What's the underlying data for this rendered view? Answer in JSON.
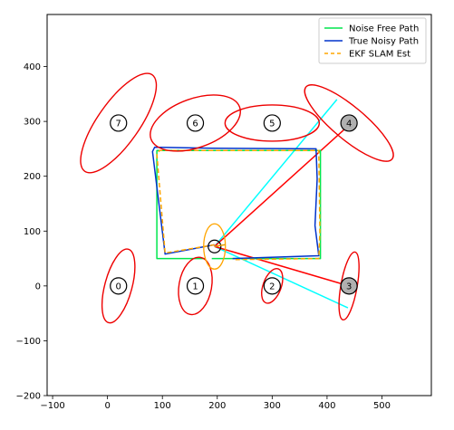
{
  "chart_data": {
    "type": "line",
    "title": "",
    "xlabel": "",
    "ylabel": "",
    "xlim": [
      -110,
      590
    ],
    "ylim": [
      -200,
      495
    ],
    "xticks": [
      -100,
      0,
      100,
      200,
      300,
      400,
      500
    ],
    "yticks": [
      -200,
      -100,
      0,
      100,
      200,
      300,
      400
    ],
    "grid": false,
    "legend_position": "top-right",
    "legend": [
      {
        "label": "Noise Free Path",
        "color": "#00e64d",
        "style": "solid"
      },
      {
        "label": "True Noisy Path",
        "color": "#0033cc",
        "style": "solid"
      },
      {
        "label": "EKF SLAM Est",
        "color": "#ffa500",
        "style": "dashed"
      }
    ],
    "series": [
      {
        "name": "Noise Free Path",
        "color": "#00e64d",
        "dash": false,
        "x": [
          178,
          90,
          90,
          388,
          388,
          190
        ],
        "y": [
          50,
          50,
          247,
          247,
          50,
          50
        ]
      },
      {
        "name": "True Noisy Path",
        "color": "#0033cc",
        "dash": false,
        "x": [
          195,
          105,
          82,
          86,
          190,
          380,
          382,
          378,
          385,
          228
        ],
        "y": [
          75,
          58,
          245,
          253,
          251,
          250,
          195,
          110,
          55,
          50
        ]
      },
      {
        "name": "EKF SLAM Est",
        "color": "#ffa500",
        "dash": true,
        "x": [
          195,
          105,
          90,
          95,
          385,
          387,
          385,
          228
        ],
        "y": [
          75,
          60,
          240,
          247,
          247,
          100,
          50,
          48
        ]
      }
    ],
    "robot": {
      "x": 195,
      "y": 72,
      "heading_deg": 0,
      "heading_color": "#e8a000",
      "ellipse_color": "#ffa500",
      "ellipse_rx": 12,
      "ellipse_ry": 25,
      "ellipse_angle_deg": 0
    },
    "sensor_rays": [
      {
        "color": "#00ffff",
        "from": [
          195,
          72
        ],
        "to": [
          418,
          340
        ]
      },
      {
        "color": "#00ffff",
        "from": [
          195,
          72
        ],
        "to": [
          438,
          -40
        ]
      },
      {
        "color": "#ff0000",
        "from": [
          195,
          72
        ],
        "to": [
          442,
          295
        ]
      },
      {
        "color": "#ff0000",
        "from": [
          195,
          72
        ],
        "to": [
          440,
          0
        ]
      }
    ],
    "landmarks": [
      {
        "id": "0",
        "x": 20,
        "y": 0,
        "observed": false,
        "ellipse": {
          "rx": 42,
          "ry": 15,
          "angle_deg": 75
        }
      },
      {
        "id": "1",
        "x": 160,
        "y": 0,
        "observed": false,
        "ellipse": {
          "rx": 32,
          "ry": 18,
          "angle_deg": 80
        }
      },
      {
        "id": "2",
        "x": 300,
        "y": 0,
        "observed": false,
        "ellipse": {
          "rx": 20,
          "ry": 10,
          "angle_deg": 70
        }
      },
      {
        "id": "3",
        "x": 440,
        "y": 0,
        "observed": true,
        "ellipse": {
          "rx": 38,
          "ry": 9,
          "angle_deg": 80
        }
      },
      {
        "id": "4",
        "x": 440,
        "y": 297,
        "observed": true,
        "ellipse": {
          "rx": 62,
          "ry": 18,
          "angle_deg": -40
        }
      },
      {
        "id": "5",
        "x": 300,
        "y": 297,
        "observed": false,
        "ellipse": {
          "rx": 52,
          "ry": 20,
          "angle_deg": 0
        }
      },
      {
        "id": "6",
        "x": 160,
        "y": 297,
        "observed": false,
        "ellipse": {
          "rx": 52,
          "ry": 27,
          "angle_deg": 20
        }
      },
      {
        "id": "7",
        "x": 20,
        "y": 297,
        "observed": false,
        "ellipse": {
          "rx": 65,
          "ry": 23,
          "angle_deg": 55
        }
      }
    ]
  }
}
